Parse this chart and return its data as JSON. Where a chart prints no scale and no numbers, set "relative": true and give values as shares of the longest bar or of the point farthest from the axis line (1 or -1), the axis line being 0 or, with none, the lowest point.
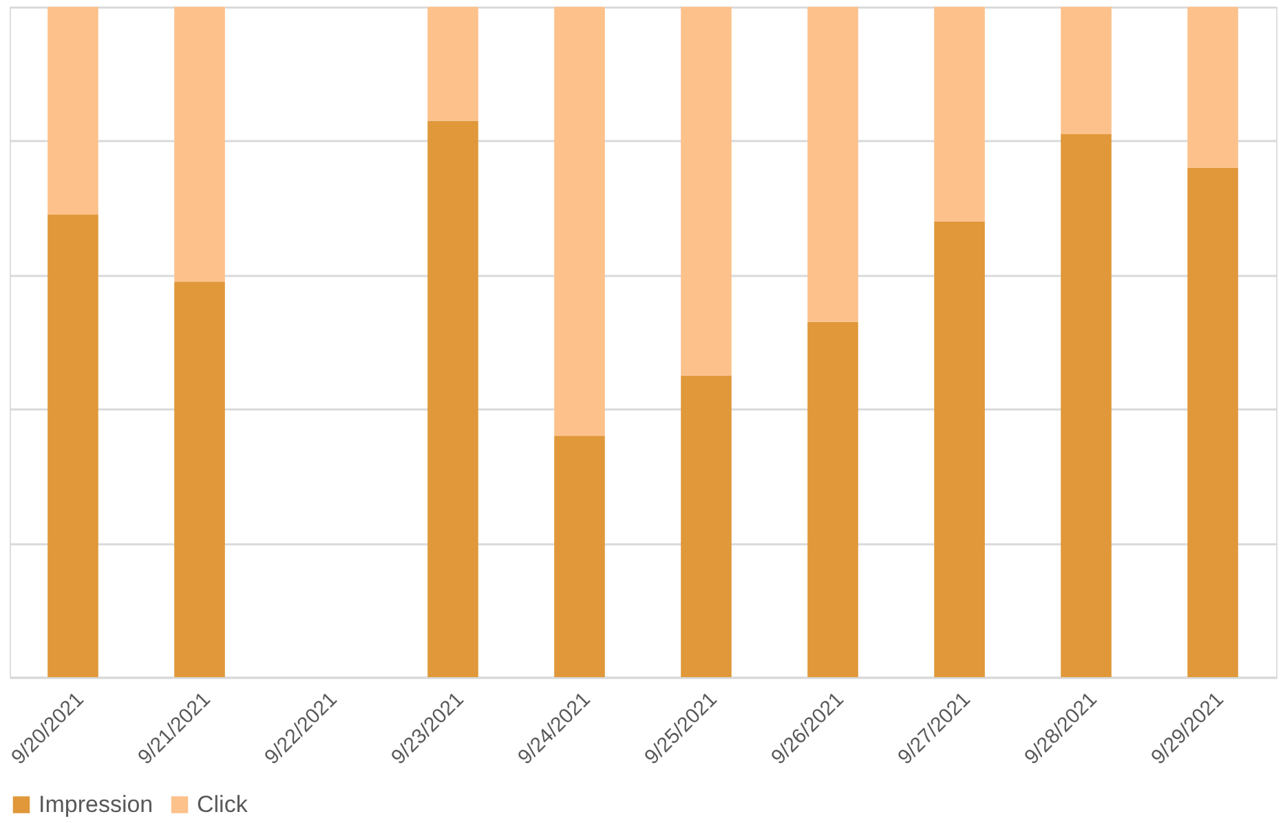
{
  "chart_data": {
    "type": "bar",
    "stacked": true,
    "relative": true,
    "categories": [
      "9/20/2021",
      "9/21/2021",
      "9/22/2021",
      "9/23/2021",
      "9/24/2021",
      "9/25/2021",
      "9/26/2021",
      "9/27/2021",
      "9/28/2021",
      "9/29/2021"
    ],
    "series": [
      {
        "name": "Impression",
        "color": "#e0983a",
        "values": [
          0.69,
          0.59,
          null,
          0.83,
          0.36,
          0.45,
          0.53,
          0.68,
          0.81,
          0.76
        ]
      },
      {
        "name": "Click",
        "color": "#fdc18c",
        "values": [
          0.31,
          0.41,
          null,
          0.17,
          0.64,
          0.55,
          0.47,
          0.32,
          0.19,
          0.24
        ]
      }
    ],
    "grid": "y",
    "legend": "bottom"
  }
}
